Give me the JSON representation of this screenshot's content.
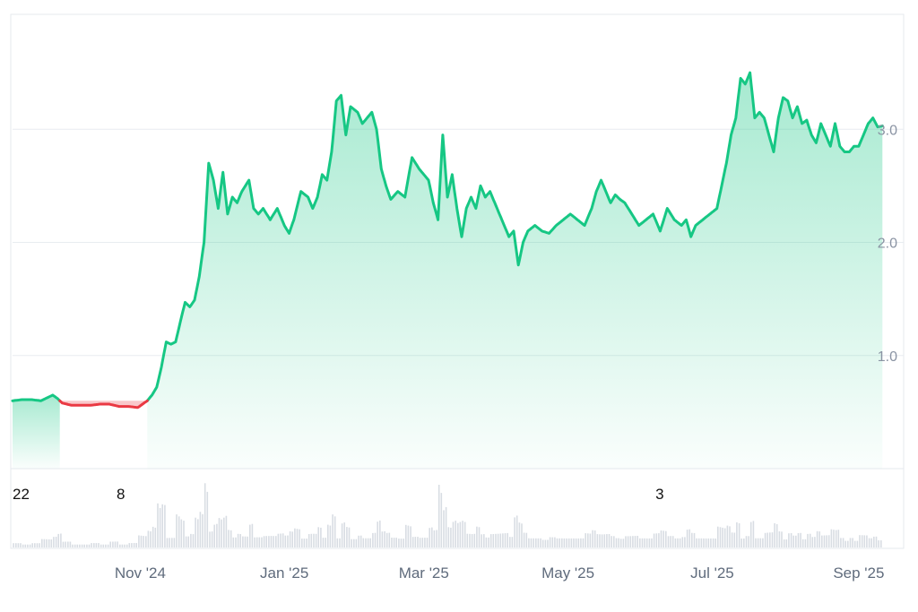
{
  "chart_data": {
    "type": "area",
    "title": "",
    "xlabel": "",
    "ylabel": "",
    "baseline": 0.6,
    "ylim": [
      0.0,
      4.0
    ],
    "y_ticks": [
      "1.0",
      "2.0",
      "3.0"
    ],
    "y_tick_values": [
      1.0,
      2.0,
      3.0
    ],
    "x_range": [
      "2024-09-08",
      "2025-09-20"
    ],
    "x_ticks": [
      {
        "date": "2024-11-01",
        "label": "Nov '24"
      },
      {
        "date": "2025-01-01",
        "label": "Jan '25"
      },
      {
        "date": "2025-03-01",
        "label": "Mar '25"
      },
      {
        "date": "2025-05-01",
        "label": "May '25"
      },
      {
        "date": "2025-07-01",
        "label": "Jul '25"
      },
      {
        "date": "2025-09-01",
        "label": "Sep '25"
      }
    ],
    "markers": [
      {
        "date": "2024-09-08",
        "label": "22"
      },
      {
        "date": "2024-10-22",
        "label": "8"
      },
      {
        "date": "2025-06-07",
        "label": "3"
      }
    ],
    "colors": {
      "up": "#16c784",
      "down": "#ea3943",
      "grid": "#e8ecf0",
      "volume": "#d8dde3"
    },
    "series": [
      {
        "values": [
          [
            "2024-09-08",
            0.6
          ],
          [
            "2024-09-12",
            0.61
          ],
          [
            "2024-09-16",
            0.61
          ],
          [
            "2024-09-20",
            0.6
          ],
          [
            "2024-09-23",
            0.63
          ],
          [
            "2024-09-25",
            0.65
          ],
          [
            "2024-09-27",
            0.62
          ],
          [
            "2024-09-29",
            0.58
          ],
          [
            "2024-10-03",
            0.56
          ],
          [
            "2024-10-07",
            0.56
          ],
          [
            "2024-10-11",
            0.56
          ],
          [
            "2024-10-15",
            0.57
          ],
          [
            "2024-10-19",
            0.57
          ],
          [
            "2024-10-23",
            0.55
          ],
          [
            "2024-10-27",
            0.55
          ],
          [
            "2024-10-31",
            0.54
          ],
          [
            "2024-11-02",
            0.57
          ],
          [
            "2024-11-04",
            0.6
          ],
          [
            "2024-11-06",
            0.65
          ],
          [
            "2024-11-08",
            0.72
          ],
          [
            "2024-11-10",
            0.9
          ],
          [
            "2024-11-12",
            1.12
          ],
          [
            "2024-11-14",
            1.1
          ],
          [
            "2024-11-16",
            1.12
          ],
          [
            "2024-11-18",
            1.3
          ],
          [
            "2024-11-20",
            1.47
          ],
          [
            "2024-11-22",
            1.43
          ],
          [
            "2024-11-24",
            1.49
          ],
          [
            "2024-11-26",
            1.7
          ],
          [
            "2024-11-28",
            2.0
          ],
          [
            "2024-11-30",
            2.7
          ],
          [
            "2024-12-02",
            2.55
          ],
          [
            "2024-12-04",
            2.3
          ],
          [
            "2024-12-06",
            2.62
          ],
          [
            "2024-12-08",
            2.25
          ],
          [
            "2024-12-10",
            2.4
          ],
          [
            "2024-12-12",
            2.35
          ],
          [
            "2024-12-14",
            2.45
          ],
          [
            "2024-12-17",
            2.55
          ],
          [
            "2024-12-19",
            2.3
          ],
          [
            "2024-12-21",
            2.25
          ],
          [
            "2024-12-23",
            2.3
          ],
          [
            "2024-12-26",
            2.2
          ],
          [
            "2024-12-29",
            2.3
          ],
          [
            "2025-01-01",
            2.15
          ],
          [
            "2025-01-03",
            2.08
          ],
          [
            "2025-01-05",
            2.2
          ],
          [
            "2025-01-08",
            2.45
          ],
          [
            "2025-01-11",
            2.4
          ],
          [
            "2025-01-13",
            2.3
          ],
          [
            "2025-01-15",
            2.4
          ],
          [
            "2025-01-17",
            2.6
          ],
          [
            "2025-01-19",
            2.55
          ],
          [
            "2025-01-21",
            2.8
          ],
          [
            "2025-01-23",
            3.25
          ],
          [
            "2025-01-25",
            3.3
          ],
          [
            "2025-01-27",
            2.95
          ],
          [
            "2025-01-29",
            3.2
          ],
          [
            "2025-02-01",
            3.15
          ],
          [
            "2025-02-03",
            3.05
          ],
          [
            "2025-02-05",
            3.1
          ],
          [
            "2025-02-07",
            3.15
          ],
          [
            "2025-02-09",
            3.0
          ],
          [
            "2025-02-11",
            2.65
          ],
          [
            "2025-02-13",
            2.5
          ],
          [
            "2025-02-15",
            2.38
          ],
          [
            "2025-02-18",
            2.45
          ],
          [
            "2025-02-21",
            2.4
          ],
          [
            "2025-02-24",
            2.75
          ],
          [
            "2025-02-27",
            2.65
          ],
          [
            "2025-03-01",
            2.6
          ],
          [
            "2025-03-03",
            2.55
          ],
          [
            "2025-03-05",
            2.35
          ],
          [
            "2025-03-07",
            2.2
          ],
          [
            "2025-03-09",
            2.95
          ],
          [
            "2025-03-11",
            2.4
          ],
          [
            "2025-03-13",
            2.6
          ],
          [
            "2025-03-15",
            2.3
          ],
          [
            "2025-03-17",
            2.05
          ],
          [
            "2025-03-19",
            2.3
          ],
          [
            "2025-03-21",
            2.4
          ],
          [
            "2025-03-23",
            2.3
          ],
          [
            "2025-03-25",
            2.5
          ],
          [
            "2025-03-27",
            2.4
          ],
          [
            "2025-03-29",
            2.45
          ],
          [
            "2025-03-31",
            2.35
          ],
          [
            "2025-04-02",
            2.25
          ],
          [
            "2025-04-04",
            2.15
          ],
          [
            "2025-04-06",
            2.05
          ],
          [
            "2025-04-08",
            2.1
          ],
          [
            "2025-04-10",
            1.8
          ],
          [
            "2025-04-12",
            2.0
          ],
          [
            "2025-04-14",
            2.1
          ],
          [
            "2025-04-17",
            2.15
          ],
          [
            "2025-04-20",
            2.1
          ],
          [
            "2025-04-23",
            2.08
          ],
          [
            "2025-04-26",
            2.15
          ],
          [
            "2025-04-29",
            2.2
          ],
          [
            "2025-05-02",
            2.25
          ],
          [
            "2025-05-05",
            2.2
          ],
          [
            "2025-05-08",
            2.15
          ],
          [
            "2025-05-11",
            2.3
          ],
          [
            "2025-05-13",
            2.45
          ],
          [
            "2025-05-15",
            2.55
          ],
          [
            "2025-05-17",
            2.45
          ],
          [
            "2025-05-19",
            2.35
          ],
          [
            "2025-05-21",
            2.42
          ],
          [
            "2025-05-23",
            2.38
          ],
          [
            "2025-05-25",
            2.35
          ],
          [
            "2025-05-28",
            2.25
          ],
          [
            "2025-05-31",
            2.15
          ],
          [
            "2025-06-03",
            2.2
          ],
          [
            "2025-06-06",
            2.25
          ],
          [
            "2025-06-09",
            2.1
          ],
          [
            "2025-06-12",
            2.3
          ],
          [
            "2025-06-15",
            2.2
          ],
          [
            "2025-06-18",
            2.15
          ],
          [
            "2025-06-20",
            2.2
          ],
          [
            "2025-06-22",
            2.05
          ],
          [
            "2025-06-24",
            2.15
          ],
          [
            "2025-06-27",
            2.2
          ],
          [
            "2025-06-30",
            2.25
          ],
          [
            "2025-07-03",
            2.3
          ],
          [
            "2025-07-05",
            2.5
          ],
          [
            "2025-07-07",
            2.7
          ],
          [
            "2025-07-09",
            2.95
          ],
          [
            "2025-07-11",
            3.1
          ],
          [
            "2025-07-13",
            3.45
          ],
          [
            "2025-07-15",
            3.4
          ],
          [
            "2025-07-17",
            3.5
          ],
          [
            "2025-07-19",
            3.1
          ],
          [
            "2025-07-21",
            3.15
          ],
          [
            "2025-07-23",
            3.1
          ],
          [
            "2025-07-25",
            2.95
          ],
          [
            "2025-07-27",
            2.8
          ],
          [
            "2025-07-29",
            3.1
          ],
          [
            "2025-07-31",
            3.28
          ],
          [
            "2025-08-02",
            3.25
          ],
          [
            "2025-08-04",
            3.1
          ],
          [
            "2025-08-06",
            3.2
          ],
          [
            "2025-08-08",
            3.05
          ],
          [
            "2025-08-10",
            3.08
          ],
          [
            "2025-08-12",
            2.95
          ],
          [
            "2025-08-14",
            2.88
          ],
          [
            "2025-08-16",
            3.05
          ],
          [
            "2025-08-18",
            2.95
          ],
          [
            "2025-08-20",
            2.85
          ],
          [
            "2025-08-22",
            3.05
          ],
          [
            "2025-08-24",
            2.85
          ],
          [
            "2025-08-26",
            2.8
          ],
          [
            "2025-08-28",
            2.8
          ],
          [
            "2025-08-30",
            2.85
          ],
          [
            "2025-09-01",
            2.85
          ],
          [
            "2025-09-03",
            2.95
          ],
          [
            "2025-09-05",
            3.05
          ],
          [
            "2025-09-07",
            3.1
          ],
          [
            "2025-09-09",
            3.02
          ],
          [
            "2025-09-11",
            3.03
          ]
        ]
      }
    ]
  }
}
